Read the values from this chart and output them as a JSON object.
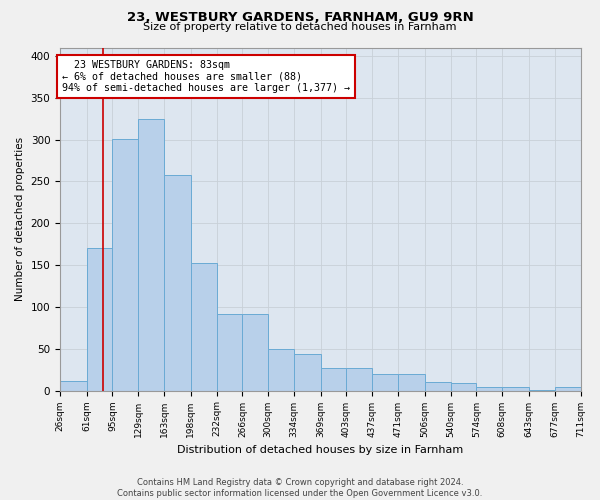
{
  "title1": "23, WESTBURY GARDENS, FARNHAM, GU9 9RN",
  "title2": "Size of property relative to detached houses in Farnham",
  "xlabel": "Distribution of detached houses by size in Farnham",
  "ylabel": "Number of detached properties",
  "bar_values": [
    12,
    170,
    301,
    325,
    258,
    153,
    91,
    91,
    50,
    44,
    27,
    27,
    20,
    20,
    10,
    9,
    4,
    4,
    1,
    4
  ],
  "bin_edges": [
    26,
    61,
    95,
    129,
    163,
    198,
    232,
    266,
    300,
    334,
    369,
    403,
    437,
    471,
    506,
    540,
    574,
    608,
    643,
    677,
    711
  ],
  "tick_labels": [
    "26sqm",
    "61sqm",
    "95sqm",
    "129sqm",
    "163sqm",
    "198sqm",
    "232sqm",
    "266sqm",
    "300sqm",
    "334sqm",
    "369sqm",
    "403sqm",
    "437sqm",
    "471sqm",
    "506sqm",
    "540sqm",
    "574sqm",
    "608sqm",
    "643sqm",
    "677sqm",
    "711sqm"
  ],
  "bar_color": "#b8d0ea",
  "bar_edge_color": "#6aaad4",
  "bar_edge_width": 0.7,
  "red_line_x": 83,
  "annotation_text": "  23 WESTBURY GARDENS: 83sqm\n← 6% of detached houses are smaller (88)\n94% of semi-detached houses are larger (1,377) →",
  "annotation_box_color": "#ffffff",
  "annotation_border_color": "#cc0000",
  "vline_color": "#cc0000",
  "grid_color": "#c8d0d8",
  "bg_color": "#dde6f0",
  "fig_bg_color": "#f0f0f0",
  "footer_text": "Contains HM Land Registry data © Crown copyright and database right 2024.\nContains public sector information licensed under the Open Government Licence v3.0.",
  "ylim": [
    0,
    410
  ],
  "yticks": [
    0,
    50,
    100,
    150,
    200,
    250,
    300,
    350,
    400
  ]
}
